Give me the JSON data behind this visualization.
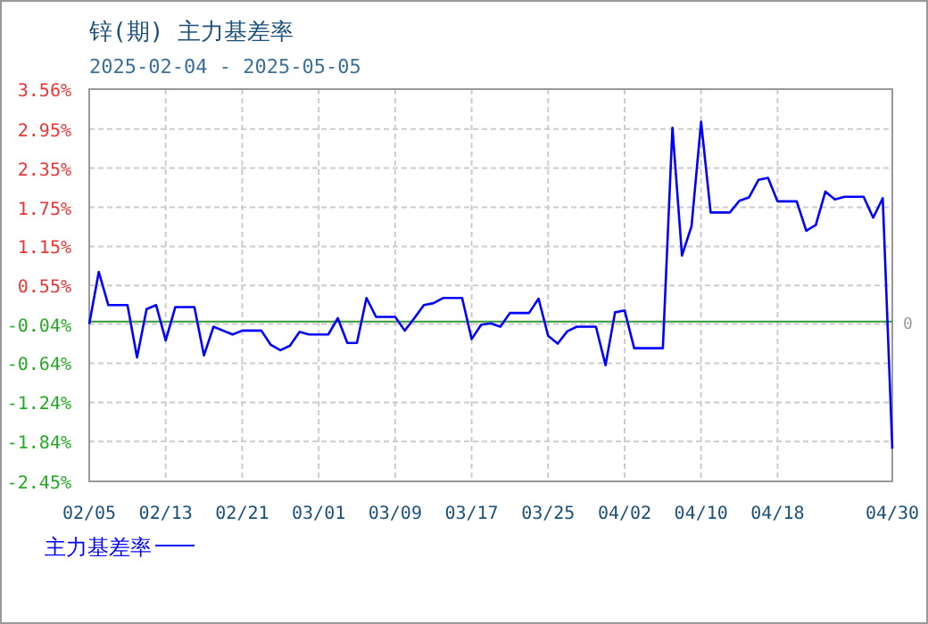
{
  "chart_data": {
    "type": "line",
    "title": "锌(期) 主力基差率",
    "subtitle": "2025-02-04 - 2025-05-05",
    "x": [
      "2025-02-05",
      "2025-02-06",
      "2025-02-07",
      "2025-02-09",
      "2025-02-10",
      "2025-02-11",
      "2025-02-12",
      "2025-02-13",
      "2025-02-14",
      "2025-02-16",
      "2025-02-17",
      "2025-02-18",
      "2025-02-20",
      "2025-02-21",
      "2025-02-23",
      "2025-02-24",
      "2025-02-25",
      "2025-02-26",
      "2025-02-27",
      "2025-02-28",
      "2025-03-02",
      "2025-03-03",
      "2025-03-04",
      "2025-03-05",
      "2025-03-06",
      "2025-03-07",
      "2025-03-09",
      "2025-03-10",
      "2025-03-11",
      "2025-03-12",
      "2025-03-13",
      "2025-03-14",
      "2025-03-16",
      "2025-03-17",
      "2025-03-18",
      "2025-03-19",
      "2025-03-20",
      "2025-03-21",
      "2025-03-23",
      "2025-03-24",
      "2025-03-25",
      "2025-03-26",
      "2025-03-27",
      "2025-03-28",
      "2025-03-30",
      "2025-03-31",
      "2025-04-01",
      "2025-04-02",
      "2025-04-03",
      "2025-04-06",
      "2025-04-07",
      "2025-04-08",
      "2025-04-09",
      "2025-04-10",
      "2025-04-11",
      "2025-04-13",
      "2025-04-14",
      "2025-04-15",
      "2025-04-16",
      "2025-04-17",
      "2025-04-18",
      "2025-04-20",
      "2025-04-21",
      "2025-04-22",
      "2025-04-23",
      "2025-04-24",
      "2025-04-25",
      "2025-04-27",
      "2025-04-28",
      "2025-04-29",
      "2025-04-30"
    ],
    "series": [
      {
        "name": "主力基差率",
        "color": "#0000ff",
        "values": [
          -0.04,
          0.76,
          0.25,
          0.25,
          -0.55,
          0.19,
          0.25,
          -0.29,
          0.22,
          0.22,
          -0.52,
          -0.08,
          -0.2,
          -0.14,
          -0.14,
          -0.36,
          -0.44,
          -0.37,
          -0.16,
          -0.2,
          -0.2,
          0.05,
          -0.33,
          -0.33,
          0.36,
          0.07,
          0.07,
          -0.14,
          0.05,
          0.25,
          0.28,
          0.36,
          0.36,
          -0.27,
          -0.05,
          -0.03,
          -0.08,
          0.13,
          0.13,
          0.35,
          -0.22,
          -0.34,
          -0.15,
          -0.08,
          -0.08,
          -0.67,
          0.14,
          0.17,
          -0.41,
          -0.41,
          2.97,
          1.01,
          1.46,
          3.06,
          1.67,
          1.67,
          1.85,
          1.9,
          2.17,
          2.2,
          1.84,
          1.84,
          1.39,
          1.48,
          1.99,
          1.87,
          1.91,
          1.91,
          1.59,
          1.89,
          -1.95
        ]
      }
    ],
    "xlim": [
      "2025-02-05",
      "2025-04-30"
    ],
    "xticks": [
      {
        "value": "2025-02-05",
        "label": "02/05"
      },
      {
        "value": "2025-02-13",
        "label": "02/13"
      },
      {
        "value": "2025-02-21",
        "label": "02/21"
      },
      {
        "value": "2025-03-01",
        "label": "03/01"
      },
      {
        "value": "2025-03-09",
        "label": "03/09"
      },
      {
        "value": "2025-03-17",
        "label": "03/17"
      },
      {
        "value": "2025-03-25",
        "label": "03/25"
      },
      {
        "value": "2025-04-02",
        "label": "04/02"
      },
      {
        "value": "2025-04-10",
        "label": "04/10"
      },
      {
        "value": "2025-04-18",
        "label": "04/18"
      },
      {
        "value": "2025-04-30",
        "label": "04/30"
      }
    ],
    "ylim": [
      -2.45,
      3.56
    ],
    "yticks": [
      {
        "value": 3.56,
        "label": "3.56%"
      },
      {
        "value": 2.95,
        "label": "2.95%"
      },
      {
        "value": 2.35,
        "label": "2.35%"
      },
      {
        "value": 1.75,
        "label": "1.75%"
      },
      {
        "value": 1.15,
        "label": "1.15%"
      },
      {
        "value": 0.55,
        "label": "0.55%"
      },
      {
        "value": -0.04,
        "label": "-0.04%"
      },
      {
        "value": -0.64,
        "label": "-0.64%"
      },
      {
        "value": -1.24,
        "label": "-1.24%"
      },
      {
        "value": -1.84,
        "label": "-1.84%"
      },
      {
        "value": -2.45,
        "label": "-2.45%"
      }
    ],
    "ref_lines": [
      {
        "axis": "y",
        "value": 0,
        "label": "0",
        "color": "#339933"
      }
    ],
    "grid": true,
    "legend": "bottom left",
    "marker": "none",
    "line_style": "solid"
  }
}
